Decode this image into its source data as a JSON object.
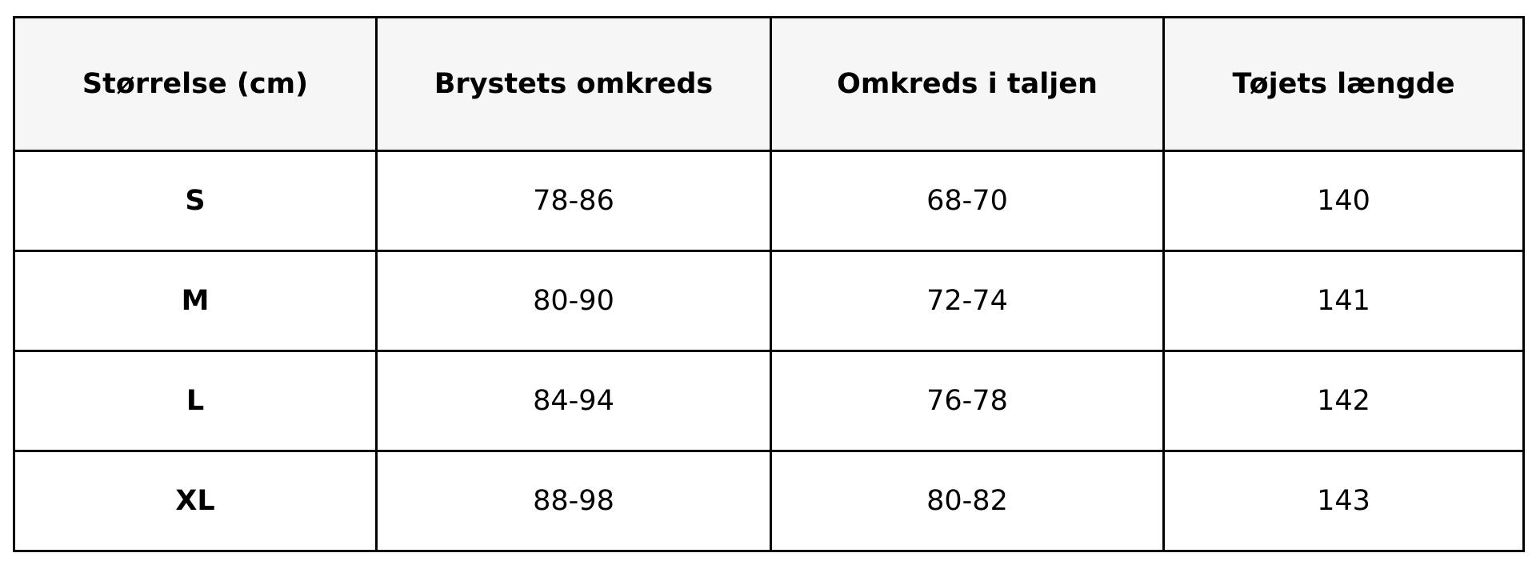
{
  "table": {
    "headers": [
      "Størrelse (cm)",
      "Brystets omkreds",
      "Omkreds i taljen",
      "Tøjets længde"
    ],
    "rows": [
      [
        "S",
        "78-86",
        "68-70",
        "140"
      ],
      [
        "M",
        "80-90",
        "72-74",
        "141"
      ],
      [
        "L",
        "84-94",
        "76-78",
        "142"
      ],
      [
        "XL",
        "88-98",
        "80-82",
        "143"
      ]
    ]
  }
}
